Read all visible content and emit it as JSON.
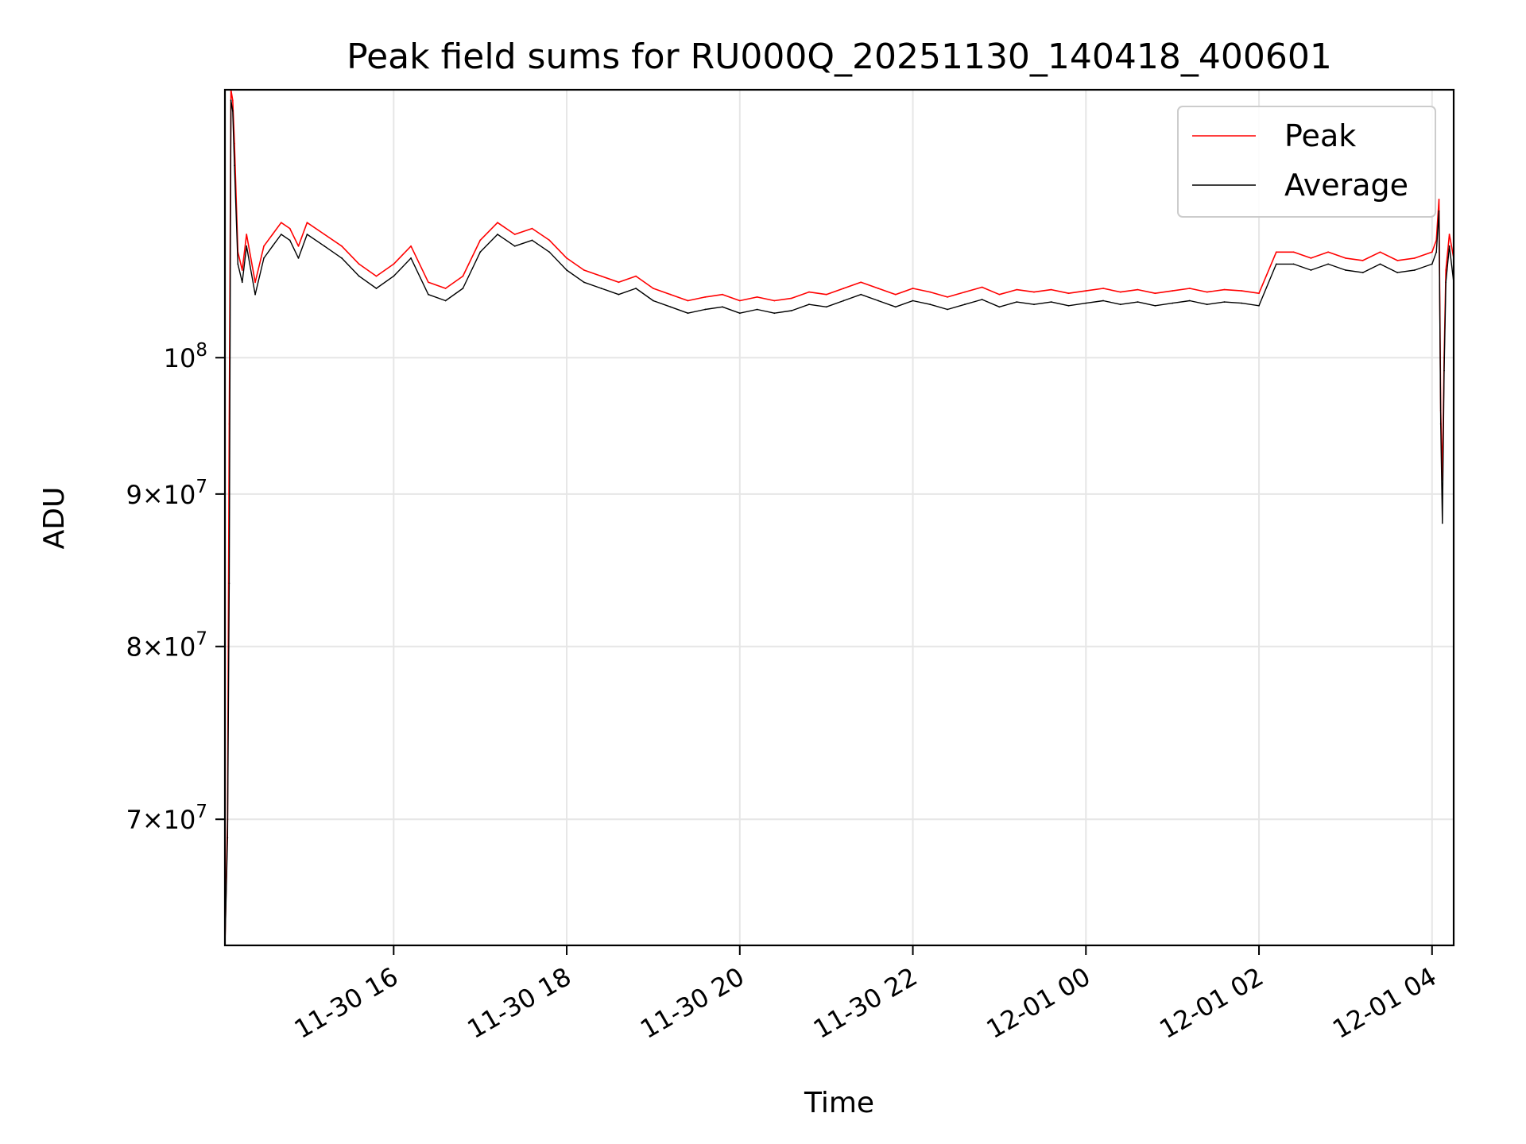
{
  "chart_data": {
    "type": "line",
    "title": "Peak field sums for RU000Q_20251130_140418_400601",
    "xlabel": "Time",
    "ylabel": "ADU",
    "yscale": "log",
    "grid": true,
    "legend_position": "top-right",
    "x_unit": "hours since 2025-11-30 00:00",
    "xlim": [
      14.05,
      28.25
    ],
    "ylim": [
      63500000,
      123000000
    ],
    "x_ticks": [
      {
        "value": 16,
        "label": "11-30 16"
      },
      {
        "value": 18,
        "label": "11-30 18"
      },
      {
        "value": 20,
        "label": "11-30 20"
      },
      {
        "value": 22,
        "label": "11-30 22"
      },
      {
        "value": 24,
        "label": "12-01 00"
      },
      {
        "value": 26,
        "label": "12-01 02"
      },
      {
        "value": 28,
        "label": "12-01 04"
      }
    ],
    "y_ticks": [
      {
        "value": 70000000,
        "mantissa": "7",
        "exp": "7",
        "label": "7 × 10^7"
      },
      {
        "value": 80000000,
        "mantissa": "8",
        "exp": "7",
        "label": "8 × 10^7"
      },
      {
        "value": 90000000,
        "mantissa": "9",
        "exp": "7",
        "label": "9 × 10^7"
      },
      {
        "value": 100000000,
        "mantissa": "",
        "exp": "8",
        "label": "10^8"
      }
    ],
    "series": [
      {
        "name": "Peak",
        "color": "#ff0000",
        "x": [
          14.05,
          14.08,
          14.1,
          14.12,
          14.14,
          14.16,
          14.2,
          14.25,
          14.3,
          14.4,
          14.5,
          14.6,
          14.7,
          14.8,
          14.9,
          15.0,
          15.2,
          15.4,
          15.6,
          15.8,
          16.0,
          16.2,
          16.4,
          16.6,
          16.8,
          17.0,
          17.2,
          17.4,
          17.6,
          17.8,
          18.0,
          18.2,
          18.4,
          18.6,
          18.8,
          19.0,
          19.2,
          19.4,
          19.6,
          19.8,
          20.0,
          20.2,
          20.4,
          20.6,
          20.8,
          21.0,
          21.2,
          21.4,
          21.6,
          21.8,
          22.0,
          22.2,
          22.4,
          22.6,
          22.8,
          23.0,
          23.2,
          23.4,
          23.6,
          23.8,
          24.0,
          24.2,
          24.4,
          24.6,
          24.8,
          25.0,
          25.2,
          25.4,
          25.6,
          25.8,
          26.0,
          26.2,
          26.4,
          26.6,
          26.8,
          27.0,
          27.2,
          27.4,
          27.6,
          27.8,
          28.0,
          28.05,
          28.08,
          28.1,
          28.12,
          28.14,
          28.16,
          28.2,
          28.25
        ],
        "values": [
          63500000,
          70000000,
          95000000,
          123000000,
          122000000,
          118000000,
          108500000,
          107000000,
          110000000,
          106000000,
          109000000,
          110000000,
          111000000,
          110500000,
          109000000,
          111000000,
          110000000,
          109000000,
          107500000,
          106500000,
          107500000,
          109000000,
          106000000,
          105500000,
          106500000,
          109500000,
          111000000,
          110000000,
          110500000,
          109500000,
          108000000,
          107000000,
          106500000,
          106000000,
          106500000,
          105500000,
          105000000,
          104500000,
          104800000,
          105000000,
          104500000,
          104800000,
          104500000,
          104700000,
          105200000,
          105000000,
          105500000,
          106000000,
          105500000,
          105000000,
          105500000,
          105200000,
          104800000,
          105200000,
          105600000,
          105000000,
          105400000,
          105200000,
          105400000,
          105100000,
          105300000,
          105500000,
          105200000,
          105400000,
          105100000,
          105300000,
          105500000,
          105200000,
          105400000,
          105300000,
          105100000,
          108500000,
          108500000,
          108000000,
          108500000,
          108000000,
          107800000,
          108500000,
          107800000,
          108000000,
          108500000,
          109500000,
          113000000,
          96000000,
          91000000,
          100000000,
          107000000,
          110000000,
          108000000
        ]
      },
      {
        "name": "Average",
        "color": "#000000",
        "x": [
          14.05,
          14.08,
          14.1,
          14.12,
          14.14,
          14.16,
          14.2,
          14.25,
          14.3,
          14.4,
          14.5,
          14.6,
          14.7,
          14.8,
          14.9,
          15.0,
          15.2,
          15.4,
          15.6,
          15.8,
          16.0,
          16.2,
          16.4,
          16.6,
          16.8,
          17.0,
          17.2,
          17.4,
          17.6,
          17.8,
          18.0,
          18.2,
          18.4,
          18.6,
          18.8,
          19.0,
          19.2,
          19.4,
          19.6,
          19.8,
          20.0,
          20.2,
          20.4,
          20.6,
          20.8,
          21.0,
          21.2,
          21.4,
          21.6,
          21.8,
          22.0,
          22.2,
          22.4,
          22.6,
          22.8,
          23.0,
          23.2,
          23.4,
          23.6,
          23.8,
          24.0,
          24.2,
          24.4,
          24.6,
          24.8,
          25.0,
          25.2,
          25.4,
          25.6,
          25.8,
          26.0,
          26.2,
          26.4,
          26.6,
          26.8,
          27.0,
          27.2,
          27.4,
          27.6,
          27.8,
          28.0,
          28.05,
          28.08,
          28.1,
          28.12,
          28.14,
          28.16,
          28.2,
          28.25
        ],
        "values": [
          63500000,
          69000000,
          84000000,
          122000000,
          121000000,
          116000000,
          107500000,
          106000000,
          109000000,
          105000000,
          108000000,
          109000000,
          110000000,
          109500000,
          108000000,
          110000000,
          109000000,
          108000000,
          106500000,
          105500000,
          106500000,
          108000000,
          105000000,
          104500000,
          105500000,
          108500000,
          110000000,
          109000000,
          109500000,
          108500000,
          107000000,
          106000000,
          105500000,
          105000000,
          105500000,
          104500000,
          104000000,
          103500000,
          103800000,
          104000000,
          103500000,
          103800000,
          103500000,
          103700000,
          104200000,
          104000000,
          104500000,
          105000000,
          104500000,
          104000000,
          104500000,
          104200000,
          103800000,
          104200000,
          104600000,
          104000000,
          104400000,
          104200000,
          104400000,
          104100000,
          104300000,
          104500000,
          104200000,
          104400000,
          104100000,
          104300000,
          104500000,
          104200000,
          104400000,
          104300000,
          104100000,
          107500000,
          107500000,
          107000000,
          107500000,
          107000000,
          106800000,
          107500000,
          106800000,
          107000000,
          107500000,
          108500000,
          112000000,
          95000000,
          88000000,
          99000000,
          106000000,
          109000000,
          106000000
        ]
      }
    ]
  }
}
